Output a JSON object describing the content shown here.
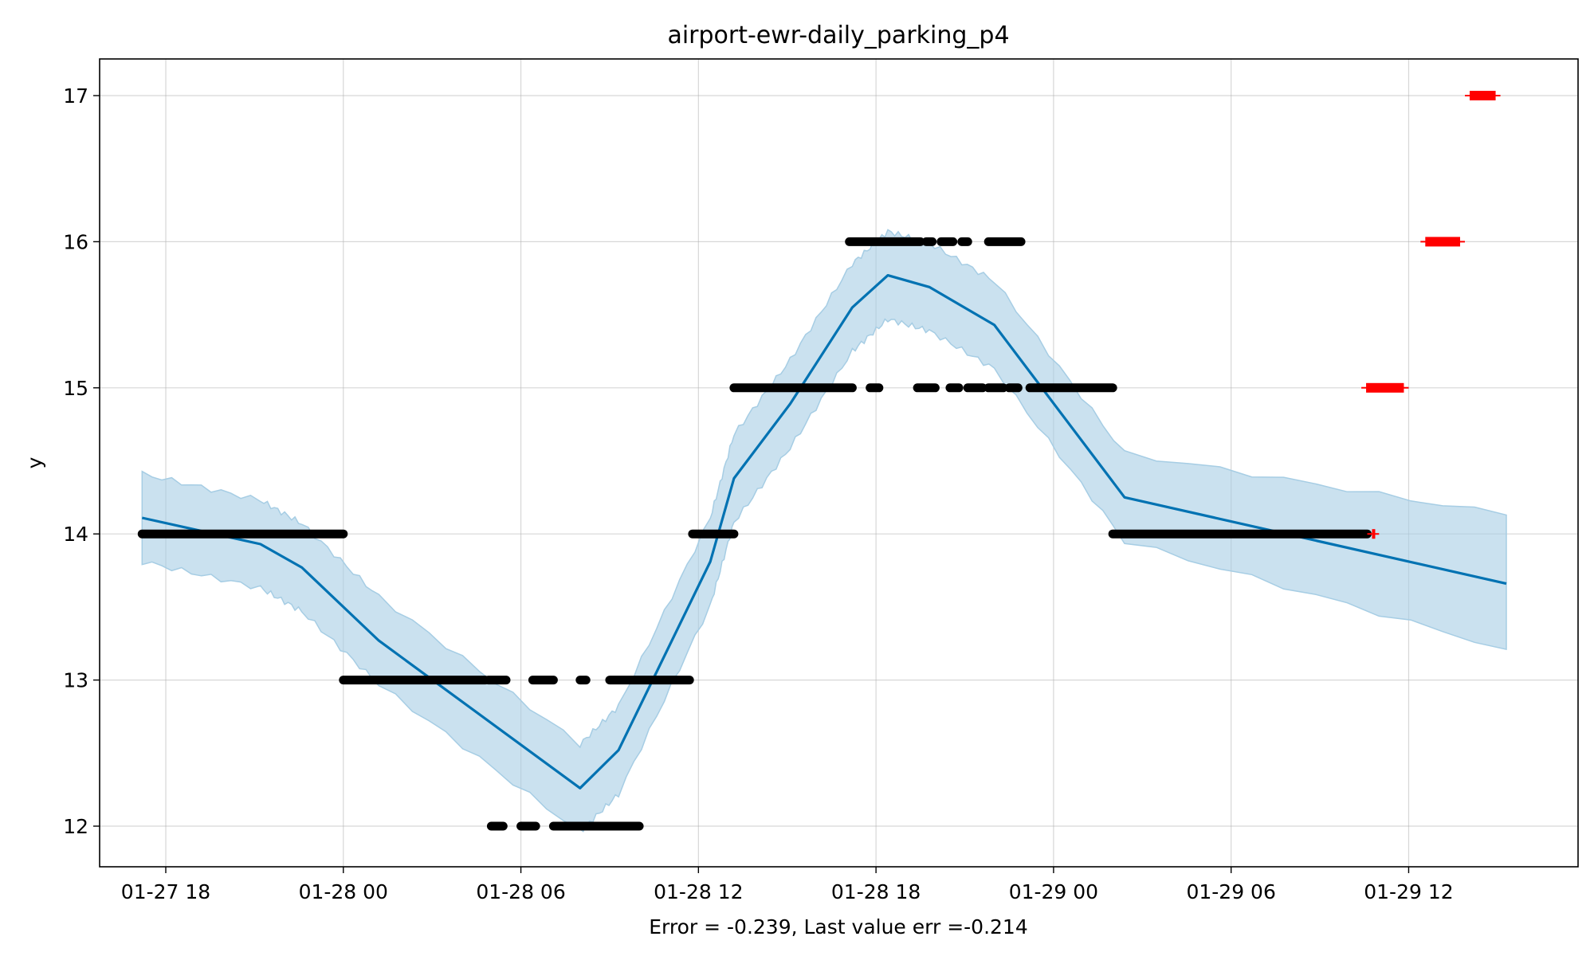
{
  "chart_data": {
    "type": "line",
    "title": "airport-ewr-daily_parking_p4",
    "xlabel": "",
    "ylabel": "y",
    "footnote": "Error = -0.239, Last value err =-0.214",
    "x_axis_unit": "hours since 01-27 18:00",
    "xlim": [
      -0.8,
      52.3
    ],
    "ylim": [
      11.7,
      17.25
    ],
    "xticks": [
      {
        "x": 0,
        "label": "01-27 18"
      },
      {
        "x": 6,
        "label": "01-28 00"
      },
      {
        "x": 12,
        "label": "01-28 06"
      },
      {
        "x": 18,
        "label": "01-28 12"
      },
      {
        "x": 24,
        "label": "01-28 18"
      },
      {
        "x": 30,
        "label": "01-29 00"
      },
      {
        "x": 36,
        "label": "01-29 06"
      },
      {
        "x": 42,
        "label": "01-29 12"
      }
    ],
    "yticks": [
      12,
      13,
      14,
      15,
      16,
      17
    ],
    "grid": true,
    "colors": {
      "forecast": "#0072b2",
      "band": "#a6cde4",
      "observed": "#000000",
      "future": "#ff0000"
    },
    "forecast": {
      "x": [
        -0.8,
        3.2,
        4.6,
        7.2,
        14.0,
        15.3,
        18.4,
        19.2,
        21.1,
        23.2,
        24.4,
        25.8,
        28.0,
        32.4,
        45.3
      ],
      "y": [
        14.11,
        13.93,
        13.77,
        13.27,
        12.26,
        12.52,
        13.81,
        14.38,
        14.89,
        15.55,
        15.77,
        15.69,
        15.43,
        14.25,
        13.66
      ]
    },
    "band": {
      "x": [
        -0.8,
        3.2,
        4.6,
        7.2,
        14.0,
        15.3,
        18.4,
        19.2,
        21.1,
        23.2,
        24.4,
        25.8,
        28.0,
        32.4,
        45.3
      ],
      "lower": [
        13.81,
        13.63,
        13.47,
        12.97,
        11.96,
        12.22,
        13.51,
        14.08,
        14.59,
        15.25,
        15.47,
        15.39,
        15.13,
        13.95,
        13.21
      ],
      "upper": [
        14.41,
        14.23,
        14.07,
        13.57,
        12.56,
        12.82,
        14.11,
        14.68,
        15.19,
        15.85,
        16.07,
        15.99,
        15.73,
        14.55,
        14.13
      ]
    },
    "observed_segments": [
      {
        "y": 14,
        "x0": -0.8,
        "x1": 6.0
      },
      {
        "y": 13,
        "x0": 6.0,
        "x1": 10.8
      },
      {
        "y": 13,
        "x0": 10.9,
        "x1": 11.5
      },
      {
        "y": 13,
        "x0": 12.4,
        "x1": 13.1
      },
      {
        "y": 13,
        "x0": 14.0,
        "x1": 14.2
      },
      {
        "y": 13,
        "x0": 15.0,
        "x1": 17.7
      },
      {
        "y": 12,
        "x0": 11.0,
        "x1": 11.4
      },
      {
        "y": 12,
        "x0": 12.0,
        "x1": 12.5
      },
      {
        "y": 12,
        "x0": 13.1,
        "x1": 16.0
      },
      {
        "y": 14,
        "x0": 17.8,
        "x1": 19.2
      },
      {
        "y": 15,
        "x0": 19.2,
        "x1": 23.2
      },
      {
        "y": 15,
        "x0": 23.8,
        "x1": 24.1
      },
      {
        "y": 15,
        "x0": 25.4,
        "x1": 26.0
      },
      {
        "y": 15,
        "x0": 26.5,
        "x1": 26.8
      },
      {
        "y": 15,
        "x0": 27.1,
        "x1": 27.6
      },
      {
        "y": 15,
        "x0": 27.8,
        "x1": 28.3
      },
      {
        "y": 15,
        "x0": 28.5,
        "x1": 28.8
      },
      {
        "y": 15,
        "x0": 29.2,
        "x1": 32.0
      },
      {
        "y": 16,
        "x0": 23.1,
        "x1": 25.5
      },
      {
        "y": 16,
        "x0": 25.7,
        "x1": 25.9
      },
      {
        "y": 16,
        "x0": 26.2,
        "x1": 26.6
      },
      {
        "y": 16,
        "x0": 26.9,
        "x1": 27.1
      },
      {
        "y": 16,
        "x0": 27.8,
        "x1": 28.9
      },
      {
        "y": 14,
        "x0": 32.0,
        "x1": 40.6
      }
    ],
    "future_segments": [
      {
        "y": 14,
        "x0": 40.6,
        "x1": 41.0
      },
      {
        "y": 15,
        "x0": 40.4,
        "x1": 42.0
      },
      {
        "y": 16,
        "x0": 42.4,
        "x1": 43.9
      },
      {
        "y": 17,
        "x0": 43.9,
        "x1": 45.1
      }
    ]
  }
}
